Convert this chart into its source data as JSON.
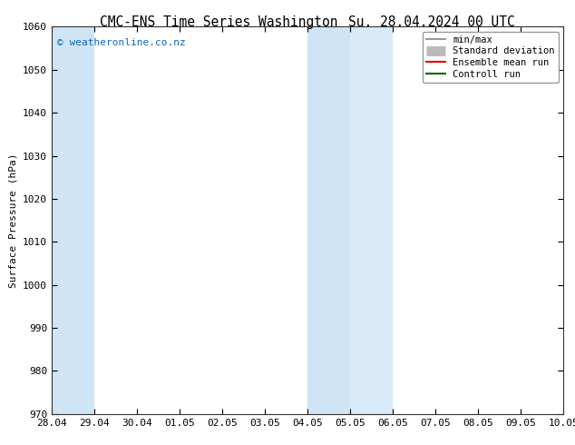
{
  "title_left": "CMC-ENS Time Series Washington",
  "title_right": "Su. 28.04.2024 00 UTC",
  "ylabel": "Surface Pressure (hPa)",
  "ylim": [
    970,
    1060
  ],
  "yticks": [
    970,
    980,
    990,
    1000,
    1010,
    1020,
    1030,
    1040,
    1050,
    1060
  ],
  "xlim": [
    0,
    12
  ],
  "xtick_labels": [
    "28.04",
    "29.04",
    "30.04",
    "01.05",
    "02.05",
    "03.05",
    "04.05",
    "05.05",
    "06.05",
    "07.05",
    "08.05",
    "09.05",
    "10.05"
  ],
  "xtick_positions": [
    0,
    1,
    2,
    3,
    4,
    5,
    6,
    7,
    8,
    9,
    10,
    11,
    12
  ],
  "shaded_bands": [
    {
      "xmin": 0,
      "xmax": 1,
      "color": "#cfe4f5"
    },
    {
      "xmin": 6,
      "xmax": 7,
      "color": "#cfe4f5"
    },
    {
      "xmin": 7,
      "xmax": 8,
      "color": "#d8eaf7"
    }
  ],
  "legend_items": [
    {
      "label": "min/max",
      "color": "#999999",
      "lw": 1.5,
      "style": "line"
    },
    {
      "label": "Standard deviation",
      "color": "#bbbbbb",
      "lw": 8,
      "style": "band"
    },
    {
      "label": "Ensemble mean run",
      "color": "#dd0000",
      "lw": 1.5,
      "style": "line"
    },
    {
      "label": "Controll run",
      "color": "#006600",
      "lw": 1.5,
      "style": "line"
    }
  ],
  "watermark": "© weatheronline.co.nz",
  "watermark_color": "#1166bb",
  "background_color": "#ffffff",
  "plot_bg_color": "#ffffff",
  "title_fontsize": 10.5,
  "axis_label_fontsize": 8,
  "tick_fontsize": 8,
  "legend_fontsize": 7.5
}
